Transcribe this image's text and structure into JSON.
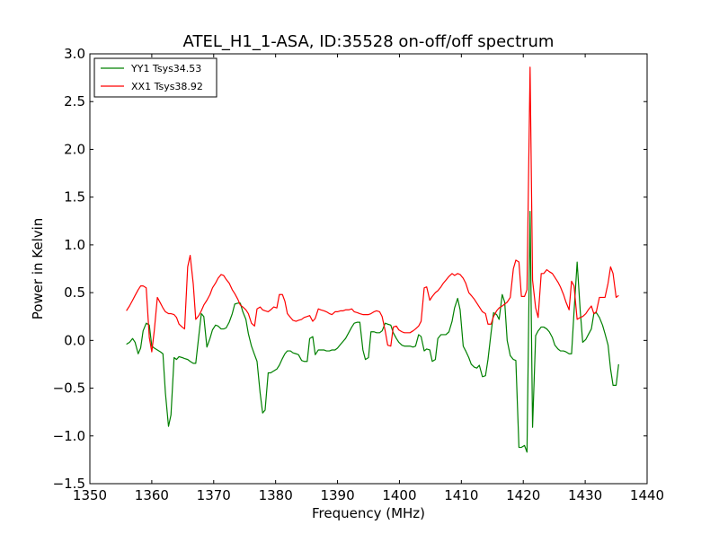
{
  "chart_data": {
    "type": "line",
    "title": "ATEL_H1_1-ASA, ID:35528 on-off/off spectrum",
    "xlabel": "Frequency (MHz)",
    "ylabel": "Power in Kelvin",
    "xlim": [
      1350,
      1440
    ],
    "ylim": [
      -1.5,
      3.0
    ],
    "xticks": [
      1350,
      1360,
      1370,
      1380,
      1390,
      1400,
      1410,
      1420,
      1430,
      1440
    ],
    "yticks": [
      -1.5,
      -1.0,
      -0.5,
      0.0,
      0.5,
      1.0,
      1.5,
      2.0,
      2.5,
      3.0
    ],
    "ytick_labels": [
      "−1.5",
      "−1.0",
      "−0.5",
      "0.0",
      "0.5",
      "1.0",
      "1.5",
      "2.0",
      "2.5",
      "3.0"
    ],
    "grid": false,
    "legend_position": "top-left",
    "series": [
      {
        "name": "YY1 Tsys34.53",
        "color": "#008000",
        "x": [
          1355.9,
          1356.4,
          1356.9,
          1357.3,
          1357.8,
          1358.2,
          1358.6,
          1359.1,
          1359.6,
          1360.0,
          1360.4,
          1360.9,
          1361.4,
          1361.8,
          1362.2,
          1362.7,
          1363.1,
          1363.6,
          1364.0,
          1364.4,
          1364.9,
          1365.3,
          1365.8,
          1366.2,
          1366.7,
          1367.1,
          1367.6,
          1368.0,
          1368.4,
          1368.9,
          1369.4,
          1369.8,
          1370.3,
          1370.7,
          1371.2,
          1371.6,
          1372.0,
          1372.5,
          1373.0,
          1373.4,
          1373.9,
          1374.3,
          1374.7,
          1375.2,
          1375.6,
          1376.1,
          1376.6,
          1377.0,
          1377.5,
          1377.9,
          1378.3,
          1378.8,
          1379.2,
          1379.7,
          1380.2,
          1380.6,
          1381.1,
          1381.5,
          1381.9,
          1382.4,
          1382.8,
          1383.3,
          1383.7,
          1384.2,
          1384.6,
          1385.1,
          1385.5,
          1386.0,
          1386.4,
          1386.9,
          1387.3,
          1387.8,
          1388.2,
          1388.7,
          1389.1,
          1389.6,
          1390.0,
          1390.5,
          1390.9,
          1391.3,
          1391.8,
          1392.3,
          1392.7,
          1393.2,
          1393.6,
          1394.1,
          1394.5,
          1395.0,
          1395.4,
          1395.9,
          1396.3,
          1396.8,
          1397.2,
          1397.7,
          1398.1,
          1398.6,
          1399.0,
          1399.5,
          1399.9,
          1400.4,
          1400.8,
          1401.2,
          1401.7,
          1402.2,
          1402.6,
          1403.1,
          1403.5,
          1404.0,
          1404.4,
          1404.9,
          1405.3,
          1405.8,
          1406.2,
          1406.7,
          1407.1,
          1407.5,
          1408.0,
          1408.5,
          1408.9,
          1409.4,
          1409.8,
          1410.3,
          1410.7,
          1411.2,
          1411.6,
          1412.1,
          1412.5,
          1412.9,
          1413.4,
          1413.9,
          1414.3,
          1414.8,
          1415.2,
          1415.7,
          1416.1,
          1416.6,
          1417.0,
          1417.4,
          1417.9,
          1418.4,
          1418.8,
          1419.3,
          1419.7,
          1420.2,
          1420.6,
          1421.1,
          1421.5,
          1422.0,
          1422.4,
          1422.9,
          1423.3,
          1423.8,
          1424.2,
          1424.7,
          1425.1,
          1425.6,
          1426.0,
          1426.5,
          1426.9,
          1427.4,
          1427.8,
          1428.2,
          1428.7,
          1429.2,
          1429.6,
          1430.1,
          1430.5,
          1431.0,
          1431.4,
          1431.8,
          1432.3,
          1432.8,
          1433.2,
          1433.7,
          1434.1,
          1434.5,
          1435.0,
          1435.4
        ],
        "values": [
          -0.04,
          -0.02,
          0.02,
          -0.02,
          -0.14,
          -0.08,
          0.1,
          0.18,
          0.16,
          -0.06,
          -0.08,
          -0.1,
          -0.12,
          -0.14,
          -0.55,
          -0.9,
          -0.78,
          -0.18,
          -0.2,
          -0.17,
          -0.18,
          -0.19,
          -0.2,
          -0.22,
          -0.24,
          -0.24,
          0.05,
          0.28,
          0.25,
          -0.07,
          0.02,
          0.11,
          0.16,
          0.15,
          0.12,
          0.12,
          0.13,
          0.19,
          0.28,
          0.38,
          0.39,
          0.39,
          0.3,
          0.22,
          0.07,
          -0.06,
          -0.15,
          -0.22,
          -0.55,
          -0.76,
          -0.73,
          -0.34,
          -0.34,
          -0.32,
          -0.3,
          -0.26,
          -0.19,
          -0.14,
          -0.11,
          -0.11,
          -0.13,
          -0.14,
          -0.15,
          -0.21,
          -0.22,
          -0.22,
          0.02,
          0.04,
          -0.15,
          -0.1,
          -0.1,
          -0.1,
          -0.11,
          -0.11,
          -0.1,
          -0.1,
          -0.08,
          -0.04,
          -0.01,
          0.02,
          0.08,
          0.14,
          0.18,
          0.19,
          0.19,
          -0.1,
          -0.2,
          -0.18,
          0.09,
          0.09,
          0.08,
          0.08,
          0.1,
          0.18,
          0.17,
          0.16,
          0.08,
          0.02,
          -0.02,
          -0.05,
          -0.06,
          -0.06,
          -0.06,
          -0.07,
          -0.06,
          0.06,
          0.04,
          -0.11,
          -0.09,
          -0.1,
          -0.22,
          -0.2,
          0.02,
          0.06,
          0.06,
          0.06,
          0.09,
          0.2,
          0.34,
          0.44,
          0.32,
          -0.06,
          -0.11,
          -0.18,
          -0.25,
          -0.28,
          -0.29,
          -0.26,
          -0.38,
          -0.37,
          -0.2,
          0.08,
          0.29,
          0.27,
          0.22,
          0.48,
          0.4,
          0.0,
          -0.16,
          -0.2,
          -0.21,
          -1.12,
          -1.12,
          -1.1,
          -1.17,
          1.35,
          -0.91,
          0.05,
          0.1,
          0.14,
          0.14,
          0.12,
          0.09,
          0.03,
          -0.05,
          -0.09,
          -0.11,
          -0.11,
          -0.12,
          -0.14,
          -0.14,
          0.3,
          0.82,
          0.31,
          -0.02,
          0.01,
          0.06,
          0.12,
          0.28,
          0.29,
          0.24,
          0.16,
          0.07,
          -0.05,
          -0.3,
          -0.47,
          -0.47,
          -0.25
        ]
      },
      {
        "name": "XX1 Tsys38.92",
        "color": "#ff0000",
        "x": [
          1355.9,
          1356.4,
          1356.9,
          1357.3,
          1357.8,
          1358.2,
          1358.6,
          1359.1,
          1359.6,
          1360.0,
          1360.4,
          1360.9,
          1361.4,
          1361.8,
          1362.2,
          1362.7,
          1363.1,
          1363.6,
          1364.0,
          1364.4,
          1364.9,
          1365.3,
          1365.8,
          1366.2,
          1366.7,
          1367.1,
          1367.6,
          1368.0,
          1368.4,
          1368.9,
          1369.4,
          1369.8,
          1370.3,
          1370.7,
          1371.2,
          1371.6,
          1372.0,
          1372.5,
          1373.0,
          1373.4,
          1373.9,
          1374.3,
          1374.7,
          1375.2,
          1375.6,
          1376.1,
          1376.6,
          1377.0,
          1377.5,
          1377.9,
          1378.3,
          1378.8,
          1379.2,
          1379.7,
          1380.2,
          1380.6,
          1381.1,
          1381.5,
          1381.9,
          1382.4,
          1382.8,
          1383.3,
          1383.7,
          1384.2,
          1384.6,
          1385.1,
          1385.5,
          1386.0,
          1386.4,
          1386.9,
          1387.3,
          1387.8,
          1388.2,
          1388.7,
          1389.1,
          1389.6,
          1390.0,
          1390.5,
          1390.9,
          1391.3,
          1391.8,
          1392.3,
          1392.7,
          1393.2,
          1393.6,
          1394.1,
          1394.5,
          1395.0,
          1395.4,
          1395.9,
          1396.3,
          1396.8,
          1397.2,
          1397.7,
          1398.1,
          1398.6,
          1399.0,
          1399.5,
          1399.9,
          1400.4,
          1400.8,
          1401.2,
          1401.7,
          1402.2,
          1402.6,
          1403.1,
          1403.5,
          1404.0,
          1404.4,
          1404.9,
          1405.3,
          1405.8,
          1406.2,
          1406.7,
          1407.1,
          1407.5,
          1408.0,
          1408.5,
          1408.9,
          1409.4,
          1409.8,
          1410.3,
          1410.7,
          1411.2,
          1411.6,
          1412.1,
          1412.5,
          1412.9,
          1413.4,
          1413.9,
          1414.3,
          1414.8,
          1415.2,
          1415.7,
          1416.1,
          1416.6,
          1417.0,
          1417.4,
          1417.9,
          1418.4,
          1418.8,
          1419.3,
          1419.7,
          1420.2,
          1420.6,
          1421.1,
          1421.5,
          1422.0,
          1422.4,
          1422.9,
          1423.3,
          1423.8,
          1424.2,
          1424.7,
          1425.1,
          1425.6,
          1426.0,
          1426.5,
          1426.9,
          1427.4,
          1427.8,
          1428.2,
          1428.7,
          1429.2,
          1429.6,
          1430.1,
          1430.5,
          1431.0,
          1431.4,
          1431.8,
          1432.3,
          1432.8,
          1433.2,
          1433.7,
          1434.1,
          1434.5,
          1435.0,
          1435.4
        ],
        "values": [
          0.31,
          0.36,
          0.42,
          0.47,
          0.53,
          0.57,
          0.57,
          0.55,
          0.03,
          -0.12,
          0.1,
          0.45,
          0.39,
          0.34,
          0.3,
          0.28,
          0.28,
          0.27,
          0.24,
          0.17,
          0.14,
          0.12,
          0.77,
          0.89,
          0.59,
          0.22,
          0.26,
          0.31,
          0.37,
          0.42,
          0.48,
          0.55,
          0.6,
          0.65,
          0.69,
          0.68,
          0.64,
          0.6,
          0.53,
          0.49,
          0.43,
          0.37,
          0.35,
          0.32,
          0.28,
          0.18,
          0.15,
          0.33,
          0.35,
          0.32,
          0.31,
          0.3,
          0.32,
          0.35,
          0.34,
          0.48,
          0.48,
          0.41,
          0.28,
          0.24,
          0.21,
          0.2,
          0.21,
          0.22,
          0.24,
          0.25,
          0.26,
          0.2,
          0.23,
          0.33,
          0.32,
          0.31,
          0.3,
          0.28,
          0.27,
          0.3,
          0.3,
          0.31,
          0.31,
          0.32,
          0.32,
          0.33,
          0.3,
          0.29,
          0.28,
          0.27,
          0.27,
          0.27,
          0.28,
          0.3,
          0.31,
          0.3,
          0.25,
          0.1,
          -0.05,
          -0.06,
          0.14,
          0.15,
          0.11,
          0.09,
          0.08,
          0.08,
          0.08,
          0.1,
          0.12,
          0.15,
          0.2,
          0.55,
          0.56,
          0.42,
          0.46,
          0.5,
          0.52,
          0.56,
          0.6,
          0.63,
          0.67,
          0.7,
          0.68,
          0.7,
          0.69,
          0.65,
          0.6,
          0.5,
          0.47,
          0.43,
          0.39,
          0.35,
          0.3,
          0.28,
          0.17,
          0.17,
          0.25,
          0.31,
          0.34,
          0.36,
          0.38,
          0.4,
          0.45,
          0.75,
          0.84,
          0.82,
          0.46,
          0.46,
          0.53,
          2.86,
          0.63,
          0.34,
          0.24,
          0.7,
          0.7,
          0.74,
          0.72,
          0.7,
          0.66,
          0.61,
          0.56,
          0.48,
          0.4,
          0.32,
          0.62,
          0.57,
          0.22,
          0.24,
          0.25,
          0.28,
          0.32,
          0.36,
          0.28,
          0.3,
          0.45,
          0.45,
          0.45,
          0.6,
          0.77,
          0.7,
          0.45,
          0.47
        ]
      }
    ]
  }
}
